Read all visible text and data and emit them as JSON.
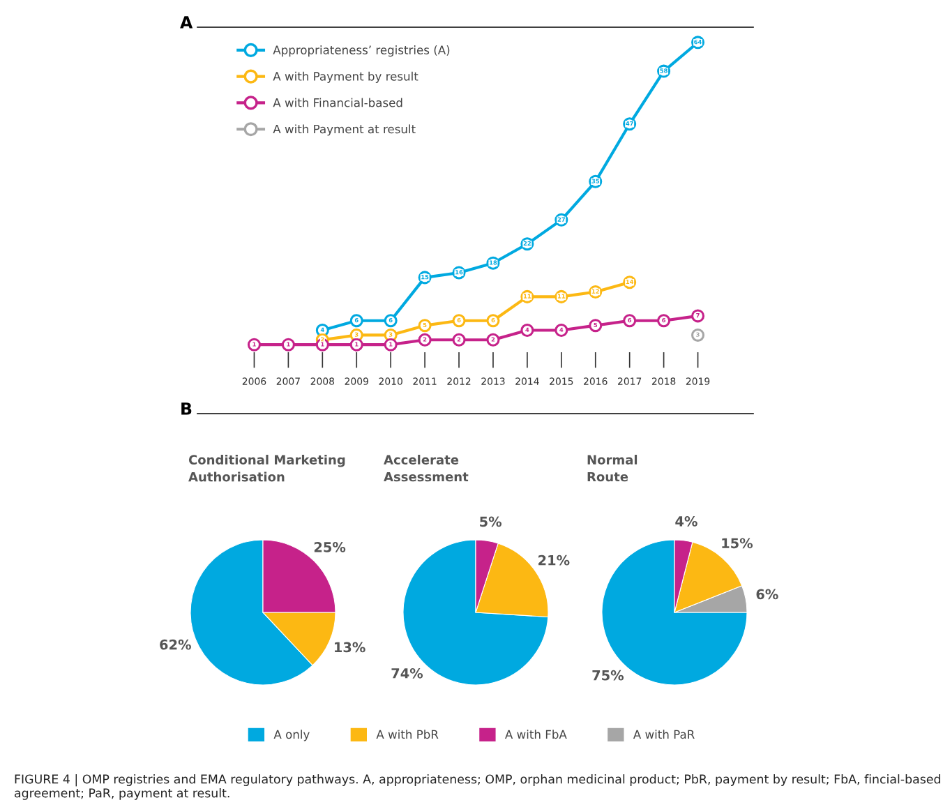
{
  "chart_data": [
    {
      "type": "line",
      "title": "A",
      "categories": [
        "2006",
        "2007",
        "2008",
        "2009",
        "2010",
        "2011",
        "2012",
        "2013",
        "2014",
        "2015",
        "2016",
        "2017",
        "2018",
        "2019"
      ],
      "series": [
        {
          "name": "Appropriateness’ registries (A)",
          "color": "#00a9e0",
          "values": [
            null,
            null,
            4,
            6,
            6,
            15,
            16,
            18,
            22,
            27,
            35,
            47,
            58,
            64
          ]
        },
        {
          "name": "A with Payment by result",
          "color": "#fcb813",
          "values": [
            null,
            null,
            2,
            3,
            3,
            5,
            6,
            6,
            11,
            11,
            12,
            14,
            null,
            null
          ]
        },
        {
          "name": "A with Financial-based",
          "color": "#c6228a",
          "values": [
            1,
            1,
            1,
            1,
            1,
            2,
            2,
            2,
            4,
            4,
            5,
            6,
            6,
            7
          ]
        },
        {
          "name": "A with Payment at result",
          "color": "#a6a6a6",
          "values": [
            null,
            null,
            null,
            null,
            null,
            null,
            null,
            null,
            null,
            null,
            null,
            null,
            null,
            3
          ]
        }
      ],
      "data_labels": true,
      "marker": "circle",
      "line_style": "solid",
      "legend": "top left",
      "tick_labels": "x",
      "grid": false,
      "annotations": [
        "FIGURE 4 | OMP registries and EMA regulatory pathways. A, appropriateness; OMP, orphan medicinal product; PbR, payment by result; FbA, fincial-based agreement; PaR, payment at result."
      ]
    },
    {
      "type": "pie",
      "title": "Conditional Marketing\nAuthorisation",
      "categories": [
        "A only",
        "A with PbR",
        "A with FbA"
      ],
      "values": [
        62,
        13,
        25
      ],
      "colors": [
        "#00a9e0",
        "#fcb813",
        "#c6228a"
      ],
      "value_labels": [
        "62%",
        "13%",
        "25%"
      ],
      "legend": "bottom",
      "annotations": [
        "B"
      ]
    },
    {
      "type": "pie",
      "title": "Accelerate\nAssessment",
      "categories": [
        null,
        null,
        null
      ],
      "values": [
        74,
        21,
        5
      ],
      "colors": [
        "#00a9e0",
        "#fcb813",
        "#c6228a"
      ],
      "value_labels": [
        "74%",
        "21%",
        "5%"
      ]
    },
    {
      "type": "pie",
      "title": "Normal\nRoute",
      "categories": [
        null,
        "A with PaR",
        null,
        null
      ],
      "values": [
        75,
        6,
        15,
        4
      ],
      "colors": [
        "#00a9e0",
        "#a6a6a6",
        "#fcb813",
        "#c6228a"
      ],
      "value_labels": [
        "75%",
        "6%",
        "15%",
        "4%"
      ],
      "legend": "bottom"
    }
  ]
}
